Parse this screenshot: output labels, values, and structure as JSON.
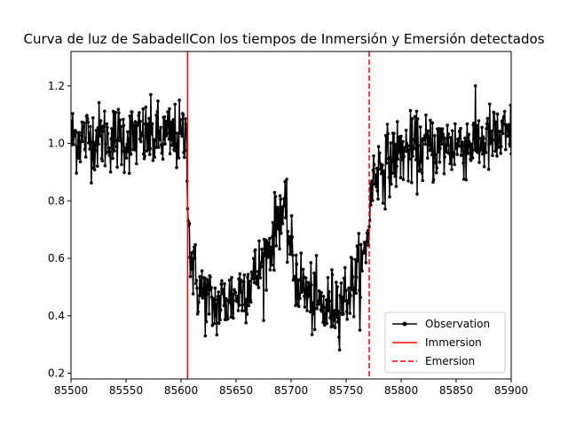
{
  "chart_data": {
    "type": "line",
    "title": "Curva de luz de SabadellCon los tiempos de Inmersión y Emersión detectados",
    "xlabel": "",
    "ylabel": "",
    "xlim": [
      85500,
      85900
    ],
    "ylim": [
      0.18,
      1.32
    ],
    "xticks": [
      85500,
      85550,
      85600,
      85650,
      85700,
      85750,
      85800,
      85850,
      85900
    ],
    "yticks": [
      0.2,
      0.4,
      0.6,
      0.8,
      1.0,
      1.2
    ],
    "grid": false,
    "legend_position": "lower-right",
    "series": [
      {
        "name": "Observation",
        "style": "line-with-markers",
        "color": "#000000",
        "x_range": [
          85500,
          85900
        ],
        "sampling_step": 0.5,
        "profile": [
          {
            "x": 85500,
            "y": 1.02
          },
          {
            "x": 85605,
            "y": 1.02
          },
          {
            "x": 85608,
            "y": 0.62
          },
          {
            "x": 85615,
            "y": 0.5
          },
          {
            "x": 85630,
            "y": 0.43
          },
          {
            "x": 85650,
            "y": 0.47
          },
          {
            "x": 85670,
            "y": 0.55
          },
          {
            "x": 85683,
            "y": 0.66
          },
          {
            "x": 85690,
            "y": 0.78
          },
          {
            "x": 85697,
            "y": 0.7
          },
          {
            "x": 85703,
            "y": 0.55
          },
          {
            "x": 85715,
            "y": 0.47
          },
          {
            "x": 85730,
            "y": 0.42
          },
          {
            "x": 85750,
            "y": 0.47
          },
          {
            "x": 85765,
            "y": 0.57
          },
          {
            "x": 85770,
            "y": 0.7
          },
          {
            "x": 85775,
            "y": 0.9
          },
          {
            "x": 85800,
            "y": 0.97
          },
          {
            "x": 85900,
            "y": 1.02
          }
        ],
        "noise_sigma": 0.06
      },
      {
        "name": "Immersion",
        "style": "solid-vertical",
        "color": "#ff0000",
        "x": 85606
      },
      {
        "name": "Emersion",
        "style": "dashed-vertical",
        "color": "#ff0000",
        "x": 85771
      }
    ]
  }
}
